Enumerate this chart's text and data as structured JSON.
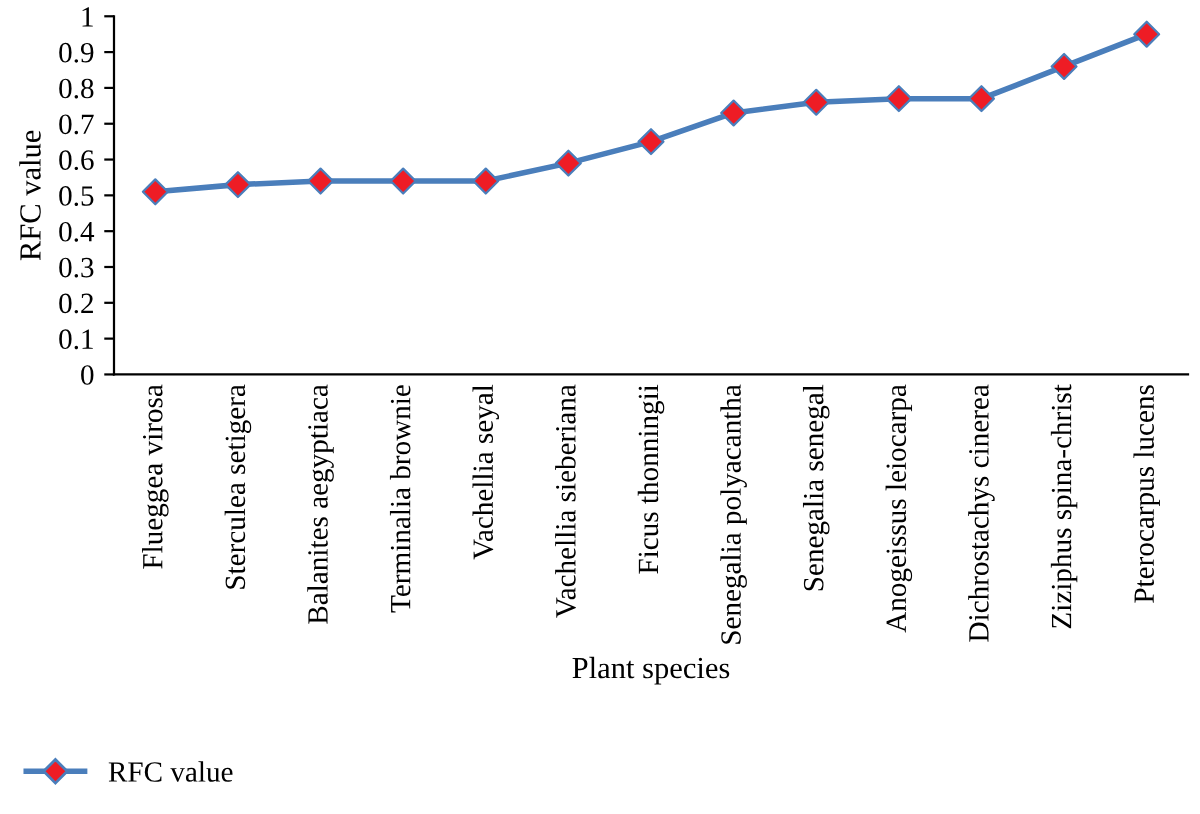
{
  "chart_data": {
    "type": "line",
    "xlabel": "Plant species",
    "ylabel": "RFC value",
    "categories": [
      "Flueggea virosa",
      "Sterculea setigera",
      "Balanites aegyptiaca",
      "Terminalia brownie",
      "Vachellia seyal",
      "Vachellia sieberiana",
      "Ficus thonningii",
      "Senegalia polyacantha",
      "Senegalia senegal",
      "Anogeissus leiocarpa",
      "Dichrostachys cinerea",
      "Ziziphus spina-christ",
      "Pterocarpus lucens"
    ],
    "series": [
      {
        "name": "RFC value",
        "color": "#4a7ebb",
        "colors": [
          "#ee1c25",
          "#ee1c25",
          "#ee1c25",
          "#ee1c25",
          "#ee1c25",
          "#ee1c25",
          "#ee1c25",
          "#ee1c25",
          "#ee1c25",
          "#ee1c25",
          "#ee1c25",
          "#ee1c25",
          "#ee1c25"
        ],
        "values": [
          0.51,
          0.53,
          0.54,
          0.54,
          0.54,
          0.59,
          0.65,
          0.73,
          0.76,
          0.77,
          0.77,
          0.86,
          0.95
        ]
      }
    ],
    "ylim": [
      0,
      1
    ],
    "yticks": [
      0,
      0.1,
      0.2,
      0.3,
      0.4,
      0.5,
      0.6,
      0.7,
      0.8,
      0.9,
      1
    ],
    "marker": "diamond",
    "line_style": "solid",
    "grid": false,
    "legend": "bottom left"
  }
}
